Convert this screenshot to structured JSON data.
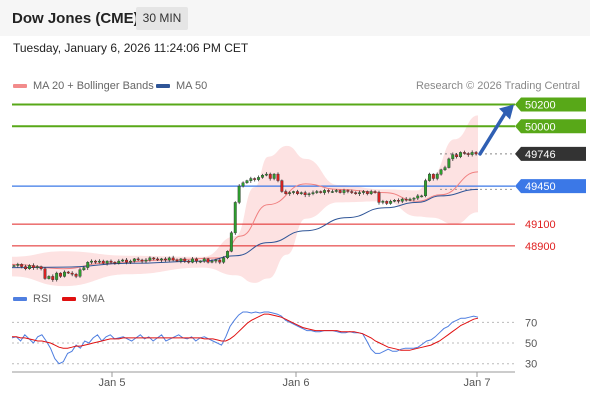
{
  "header": {
    "title": "Dow Jones (CME)",
    "timeframe": "30 MIN"
  },
  "timestamp": "Tuesday, January 6, 2026 11:24:06 PM CET",
  "credit": "Research © 2026 Trading Central",
  "legend_main": [
    {
      "label": "MA 20 + Bollinger Bands",
      "color": "#f28b8b"
    },
    {
      "label": "MA 50",
      "color": "#2f5597"
    }
  ],
  "legend_rsi": [
    {
      "label": "RSI",
      "color": "#4f7fe0"
    },
    {
      "label": "9MA",
      "color": "#e01010"
    }
  ],
  "chart_data": [
    {
      "type": "candlestick",
      "x_ticks": [
        "Jan 5",
        "Jan 6",
        "Jan 7"
      ],
      "ylim": [
        48660,
        50260
      ],
      "levels": [
        {
          "value": 50200,
          "label": "50200",
          "color": "#58a818",
          "kind": "resistance"
        },
        {
          "value": 50000,
          "label": "50000",
          "color": "#58a818",
          "kind": "resistance"
        },
        {
          "value": 49746,
          "label": "49746",
          "color": "#333333",
          "kind": "last-price"
        },
        {
          "value": 49450,
          "label": "49450",
          "color": "#3b78e7",
          "kind": "pivot"
        },
        {
          "value": 49100,
          "label": "49100",
          "color": "#e02020",
          "kind": "support"
        },
        {
          "value": 48900,
          "label": "48900",
          "color": "#e02020",
          "kind": "support"
        }
      ],
      "close_series": [
        48720,
        48730,
        48710,
        48690,
        48720,
        48700,
        48710,
        48690,
        48600,
        48620,
        48590,
        48650,
        48620,
        48660,
        48650,
        48640,
        48620,
        48680,
        48700,
        48750,
        48760,
        48750,
        48760,
        48740,
        48760,
        48750,
        48740,
        48760,
        48770,
        48750,
        48760,
        48780,
        48770,
        48760,
        48770,
        48790,
        48780,
        48770,
        48780,
        48770,
        48790,
        48770,
        48760,
        48780,
        48760,
        48750,
        48780,
        48760,
        48760,
        48780,
        48750,
        48760,
        48770,
        48750,
        48790,
        48850,
        49020,
        49300,
        49450,
        49480,
        49500,
        49520,
        49510,
        49530,
        49550,
        49560,
        49520,
        49560,
        49500,
        49400,
        49380,
        49390,
        49400,
        49380,
        49390,
        49370,
        49380,
        49390,
        49400,
        49390,
        49410,
        49400,
        49400,
        49410,
        49390,
        49410,
        49400,
        49390,
        49380,
        49390,
        49400,
        49380,
        49400,
        49390,
        49300,
        49310,
        49290,
        49310,
        49320,
        49310,
        49330,
        49320,
        49330,
        49340,
        49360,
        49360,
        49500,
        49560,
        49520,
        49560,
        49600,
        49620,
        49700,
        49740,
        49720,
        49760,
        49750,
        49740,
        49760,
        49746
      ],
      "ma50": [
        [
          0,
          48700
        ],
        [
          0.11,
          48705
        ],
        [
          0.25,
          48740
        ],
        [
          0.41,
          48760
        ],
        [
          0.48,
          48810
        ],
        [
          0.55,
          48930
        ],
        [
          0.63,
          49040
        ],
        [
          0.72,
          49160
        ],
        [
          0.8,
          49250
        ],
        [
          0.87,
          49300
        ],
        [
          0.92,
          49360
        ],
        [
          1,
          49420
        ]
      ],
      "ma20": [
        [
          0,
          48730
        ],
        [
          0.11,
          48690
        ],
        [
          0.2,
          48740
        ],
        [
          0.33,
          48770
        ],
        [
          0.45,
          48790
        ],
        [
          0.49,
          48990
        ],
        [
          0.55,
          49280
        ],
        [
          0.63,
          49470
        ],
        [
          0.7,
          49420
        ],
        [
          0.8,
          49390
        ],
        [
          0.87,
          49310
        ],
        [
          0.92,
          49370
        ],
        [
          1,
          49580
        ]
      ],
      "bollinger": {
        "upper": [
          [
            0,
            48800
          ],
          [
            0.11,
            48850
          ],
          [
            0.25,
            48810
          ],
          [
            0.41,
            48800
          ],
          [
            0.48,
            48990
          ],
          [
            0.52,
            49440
          ],
          [
            0.55,
            49720
          ],
          [
            0.59,
            49820
          ],
          [
            0.63,
            49700
          ],
          [
            0.7,
            49460
          ],
          [
            0.8,
            49420
          ],
          [
            0.87,
            49410
          ],
          [
            0.9,
            49540
          ],
          [
            0.95,
            49880
          ],
          [
            1,
            50100
          ]
        ],
        "lower": [
          [
            0,
            48620
          ],
          [
            0.11,
            48530
          ],
          [
            0.25,
            48640
          ],
          [
            0.41,
            48700
          ],
          [
            0.48,
            48630
          ],
          [
            0.52,
            48560
          ],
          [
            0.55,
            48600
          ],
          [
            0.59,
            48820
          ],
          [
            0.63,
            49150
          ],
          [
            0.7,
            49300
          ],
          [
            0.8,
            49310
          ],
          [
            0.87,
            49170
          ],
          [
            0.9,
            49160
          ],
          [
            0.95,
            49100
          ],
          [
            1,
            49210
          ]
        ]
      },
      "projection_arrow": {
        "from": 49746,
        "to": 50200
      }
    },
    {
      "type": "line",
      "name": "RSI",
      "yticks": [
        70,
        50,
        30
      ],
      "ylim": [
        22,
        80
      ],
      "series": [
        {
          "name": "RSI",
          "values": [
            55,
            56,
            52,
            58,
            54,
            50,
            56,
            58,
            52,
            45,
            35,
            30,
            32,
            40,
            42,
            48,
            45,
            52,
            50,
            55,
            58,
            52,
            56,
            58,
            54,
            55,
            56,
            54,
            52,
            55,
            58,
            54,
            56,
            52,
            55,
            58,
            52,
            54,
            56,
            58,
            55,
            54,
            56,
            52,
            55,
            56,
            54,
            52,
            50,
            48,
            56,
            66,
            72,
            77,
            80,
            80,
            79,
            80,
            79,
            80,
            80,
            79,
            78,
            76,
            72,
            70,
            68,
            66,
            64,
            62,
            62,
            61,
            61,
            62,
            62,
            62,
            61,
            60,
            60,
            61,
            60,
            60,
            59,
            52,
            44,
            40,
            40,
            42,
            44,
            42,
            42,
            44,
            45,
            45,
            45,
            46,
            49,
            52,
            53,
            56,
            60,
            64,
            66,
            70,
            72,
            74,
            74,
            75,
            76,
            75
          ]
        },
        {
          "name": "9MA",
          "values": [
            56,
            56,
            55,
            55,
            54,
            53,
            52,
            52,
            51,
            50,
            48,
            46,
            45,
            45,
            46,
            47,
            47,
            48,
            49,
            50,
            51,
            52,
            53,
            54,
            54,
            54,
            55,
            55,
            55,
            55,
            55,
            55,
            55,
            55,
            55,
            55,
            55,
            55,
            55,
            55,
            55,
            55,
            55,
            55,
            55,
            54,
            54,
            54,
            53,
            52,
            52,
            54,
            57,
            61,
            65,
            69,
            72,
            74,
            76,
            78,
            78,
            77,
            76,
            75,
            73,
            71,
            69,
            67,
            65,
            64,
            63,
            62,
            62,
            62,
            62,
            62,
            62,
            61,
            61,
            61,
            61,
            60,
            59,
            57,
            55,
            52,
            50,
            48,
            46,
            45,
            44,
            43,
            43,
            43,
            44,
            45,
            46,
            47,
            48,
            50,
            52,
            55,
            58,
            61,
            64,
            67,
            69,
            71,
            73,
            74
          ]
        }
      ]
    }
  ]
}
